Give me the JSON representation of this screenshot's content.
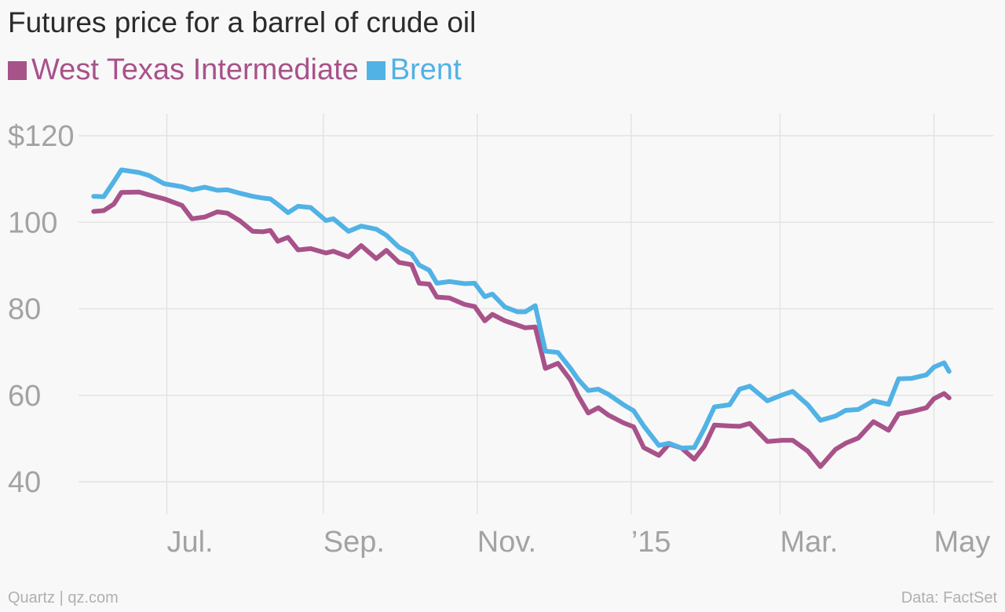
{
  "chart_data": {
    "type": "line",
    "title": "Futures price for a barrel of crude oil",
    "x_ticks": [
      {
        "label": "Jul.",
        "date": "2014-07-01"
      },
      {
        "label": "Sep.",
        "date": "2014-09-01"
      },
      {
        "label": "Nov.",
        "date": "2014-11-01"
      },
      {
        "label": "’15",
        "date": "2015-01-01"
      },
      {
        "label": "Mar.",
        "date": "2015-03-01"
      },
      {
        "label": "May",
        "date": "2015-05-01"
      }
    ],
    "y_ticks": [
      {
        "label": "$120",
        "value": 120
      },
      {
        "label": "100",
        "value": 100
      },
      {
        "label": "80",
        "value": 80
      },
      {
        "label": "60",
        "value": 60
      },
      {
        "label": "40",
        "value": 40
      }
    ],
    "xlim": [
      "2014-05-27",
      "2015-05-08"
    ],
    "ylim": [
      33,
      129
    ],
    "grid": true,
    "legend_position": "top-left",
    "series": [
      {
        "name": "West Texas Intermediate",
        "color": "#a8528a",
        "points": [
          [
            "2014-06-02",
            102.5
          ],
          [
            "2014-06-06",
            102.7
          ],
          [
            "2014-06-10",
            104.2
          ],
          [
            "2014-06-13",
            106.9
          ],
          [
            "2014-06-20",
            107.0
          ],
          [
            "2014-06-24",
            106.3
          ],
          [
            "2014-06-30",
            105.4
          ],
          [
            "2014-07-07",
            103.9
          ],
          [
            "2014-07-11",
            100.8
          ],
          [
            "2014-07-16",
            101.2
          ],
          [
            "2014-07-21",
            102.4
          ],
          [
            "2014-07-25",
            102.1
          ],
          [
            "2014-07-30",
            100.3
          ],
          [
            "2014-08-04",
            97.9
          ],
          [
            "2014-08-08",
            97.8
          ],
          [
            "2014-08-11",
            98.1
          ],
          [
            "2014-08-14",
            95.6
          ],
          [
            "2014-08-18",
            96.5
          ],
          [
            "2014-08-22",
            93.6
          ],
          [
            "2014-08-27",
            93.9
          ],
          [
            "2014-09-02",
            92.9
          ],
          [
            "2014-09-05",
            93.3
          ],
          [
            "2014-09-11",
            92.0
          ],
          [
            "2014-09-16",
            94.6
          ],
          [
            "2014-09-22",
            91.6
          ],
          [
            "2014-09-26",
            93.5
          ],
          [
            "2014-10-01",
            90.7
          ],
          [
            "2014-10-06",
            90.2
          ],
          [
            "2014-10-09",
            85.9
          ],
          [
            "2014-10-13",
            85.7
          ],
          [
            "2014-10-16",
            82.7
          ],
          [
            "2014-10-21",
            82.5
          ],
          [
            "2014-10-27",
            81.0
          ],
          [
            "2014-10-31",
            80.5
          ],
          [
            "2014-11-04",
            77.2
          ],
          [
            "2014-11-07",
            78.7
          ],
          [
            "2014-11-12",
            77.2
          ],
          [
            "2014-11-17",
            76.2
          ],
          [
            "2014-11-20",
            75.6
          ],
          [
            "2014-11-24",
            75.8
          ],
          [
            "2014-11-28",
            66.2
          ],
          [
            "2014-12-03",
            67.4
          ],
          [
            "2014-12-08",
            63.5
          ],
          [
            "2014-12-11",
            59.9
          ],
          [
            "2014-12-15",
            55.9
          ],
          [
            "2014-12-19",
            57.1
          ],
          [
            "2014-12-23",
            55.4
          ],
          [
            "2014-12-29",
            53.6
          ],
          [
            "2015-01-02",
            52.7
          ],
          [
            "2015-01-06",
            47.9
          ],
          [
            "2015-01-12",
            46.1
          ],
          [
            "2015-01-16",
            48.7
          ],
          [
            "2015-01-21",
            47.8
          ],
          [
            "2015-01-26",
            45.2
          ],
          [
            "2015-01-30",
            48.2
          ],
          [
            "2015-02-03",
            53.1
          ],
          [
            "2015-02-09",
            52.9
          ],
          [
            "2015-02-13",
            52.8
          ],
          [
            "2015-02-17",
            53.5
          ],
          [
            "2015-02-24",
            49.3
          ],
          [
            "2015-03-02",
            49.6
          ],
          [
            "2015-03-06",
            49.6
          ],
          [
            "2015-03-12",
            47.1
          ],
          [
            "2015-03-17",
            43.5
          ],
          [
            "2015-03-23",
            47.5
          ],
          [
            "2015-03-27",
            48.9
          ],
          [
            "2015-04-01",
            50.1
          ],
          [
            "2015-04-07",
            53.9
          ],
          [
            "2015-04-13",
            51.9
          ],
          [
            "2015-04-17",
            55.7
          ],
          [
            "2015-04-22",
            56.2
          ],
          [
            "2015-04-28",
            57.1
          ],
          [
            "2015-05-01",
            59.2
          ],
          [
            "2015-05-05",
            60.4
          ],
          [
            "2015-05-07",
            59.4
          ]
        ]
      },
      {
        "name": "Brent",
        "color": "#51b2e5",
        "points": [
          [
            "2014-06-02",
            106.0
          ],
          [
            "2014-06-06",
            105.9
          ],
          [
            "2014-06-10",
            109.4
          ],
          [
            "2014-06-13",
            112.1
          ],
          [
            "2014-06-20",
            111.5
          ],
          [
            "2014-06-24",
            110.8
          ],
          [
            "2014-06-30",
            108.9
          ],
          [
            "2014-07-07",
            108.2
          ],
          [
            "2014-07-11",
            107.5
          ],
          [
            "2014-07-16",
            108.1
          ],
          [
            "2014-07-21",
            107.4
          ],
          [
            "2014-07-25",
            107.5
          ],
          [
            "2014-07-30",
            106.7
          ],
          [
            "2014-08-04",
            106.0
          ],
          [
            "2014-08-08",
            105.6
          ],
          [
            "2014-08-11",
            105.4
          ],
          [
            "2014-08-14",
            104.1
          ],
          [
            "2014-08-18",
            102.2
          ],
          [
            "2014-08-22",
            103.7
          ],
          [
            "2014-08-27",
            103.4
          ],
          [
            "2014-09-02",
            100.4
          ],
          [
            "2014-09-05",
            100.8
          ],
          [
            "2014-09-11",
            97.9
          ],
          [
            "2014-09-16",
            99.1
          ],
          [
            "2014-09-22",
            98.4
          ],
          [
            "2014-09-26",
            97.0
          ],
          [
            "2014-10-01",
            94.2
          ],
          [
            "2014-10-06",
            92.7
          ],
          [
            "2014-10-09",
            90.1
          ],
          [
            "2014-10-13",
            88.9
          ],
          [
            "2014-10-16",
            85.9
          ],
          [
            "2014-10-21",
            86.3
          ],
          [
            "2014-10-27",
            85.8
          ],
          [
            "2014-10-31",
            85.9
          ],
          [
            "2014-11-04",
            82.8
          ],
          [
            "2014-11-07",
            83.4
          ],
          [
            "2014-11-12",
            80.4
          ],
          [
            "2014-11-17",
            79.3
          ],
          [
            "2014-11-20",
            79.3
          ],
          [
            "2014-11-24",
            80.7
          ],
          [
            "2014-11-28",
            70.2
          ],
          [
            "2014-12-03",
            69.9
          ],
          [
            "2014-12-08",
            66.2
          ],
          [
            "2014-12-11",
            63.7
          ],
          [
            "2014-12-15",
            61.1
          ],
          [
            "2014-12-19",
            61.4
          ],
          [
            "2014-12-23",
            60.2
          ],
          [
            "2014-12-29",
            57.8
          ],
          [
            "2015-01-02",
            56.4
          ],
          [
            "2015-01-06",
            52.9
          ],
          [
            "2015-01-12",
            48.4
          ],
          [
            "2015-01-16",
            48.9
          ],
          [
            "2015-01-21",
            47.8
          ],
          [
            "2015-01-26",
            47.9
          ],
          [
            "2015-01-30",
            52.3
          ],
          [
            "2015-02-03",
            57.3
          ],
          [
            "2015-02-09",
            57.8
          ],
          [
            "2015-02-13",
            61.4
          ],
          [
            "2015-02-17",
            62.1
          ],
          [
            "2015-02-24",
            58.7
          ],
          [
            "2015-03-02",
            60.1
          ],
          [
            "2015-03-06",
            60.9
          ],
          [
            "2015-03-12",
            57.8
          ],
          [
            "2015-03-17",
            54.2
          ],
          [
            "2015-03-23",
            55.2
          ],
          [
            "2015-03-27",
            56.5
          ],
          [
            "2015-04-01",
            56.7
          ],
          [
            "2015-04-07",
            58.7
          ],
          [
            "2015-04-13",
            57.9
          ],
          [
            "2015-04-17",
            63.8
          ],
          [
            "2015-04-22",
            63.9
          ],
          [
            "2015-04-28",
            64.7
          ],
          [
            "2015-05-01",
            66.5
          ],
          [
            "2015-05-05",
            67.5
          ],
          [
            "2015-05-07",
            65.5
          ]
        ]
      }
    ]
  },
  "footer": {
    "source_left": "Quartz | qz.com",
    "source_right": "Data: FactSet"
  }
}
